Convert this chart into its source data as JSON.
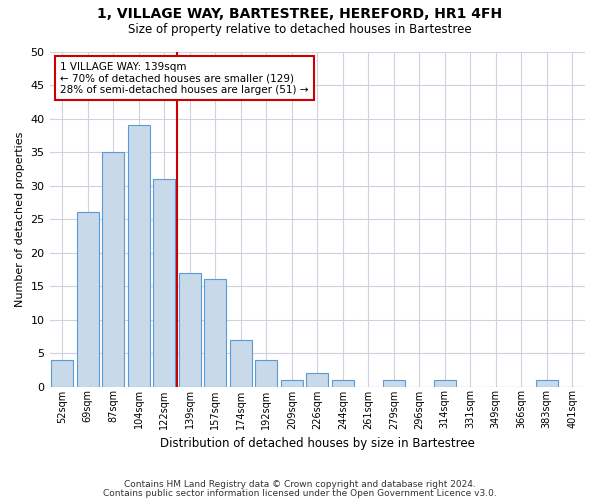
{
  "title1": "1, VILLAGE WAY, BARTESTREE, HEREFORD, HR1 4FH",
  "title2": "Size of property relative to detached houses in Bartestree",
  "xlabel": "Distribution of detached houses by size in Bartestree",
  "ylabel": "Number of detached properties",
  "categories": [
    "52sqm",
    "69sqm",
    "87sqm",
    "104sqm",
    "122sqm",
    "139sqm",
    "157sqm",
    "174sqm",
    "192sqm",
    "209sqm",
    "226sqm",
    "244sqm",
    "261sqm",
    "279sqm",
    "296sqm",
    "314sqm",
    "331sqm",
    "349sqm",
    "366sqm",
    "383sqm",
    "401sqm"
  ],
  "values": [
    4,
    26,
    35,
    39,
    31,
    17,
    16,
    7,
    4,
    1,
    2,
    1,
    0,
    1,
    0,
    1,
    0,
    0,
    0,
    1,
    0
  ],
  "bar_color": "#c8d9ea",
  "bar_edge_color": "#5b9bd5",
  "vline_x_index": 5,
  "vline_color": "#cc0000",
  "annotation_text": "1 VILLAGE WAY: 139sqm\n← 70% of detached houses are smaller (129)\n28% of semi-detached houses are larger (51) →",
  "annotation_box_color": "#ffffff",
  "annotation_box_edge_color": "#cc0000",
  "ylim": [
    0,
    50
  ],
  "yticks": [
    0,
    5,
    10,
    15,
    20,
    25,
    30,
    35,
    40,
    45,
    50
  ],
  "grid_color": "#d0d0e0",
  "footnote1": "Contains HM Land Registry data © Crown copyright and database right 2024.",
  "footnote2": "Contains public sector information licensed under the Open Government Licence v3.0.",
  "bg_color": "#ffffff"
}
